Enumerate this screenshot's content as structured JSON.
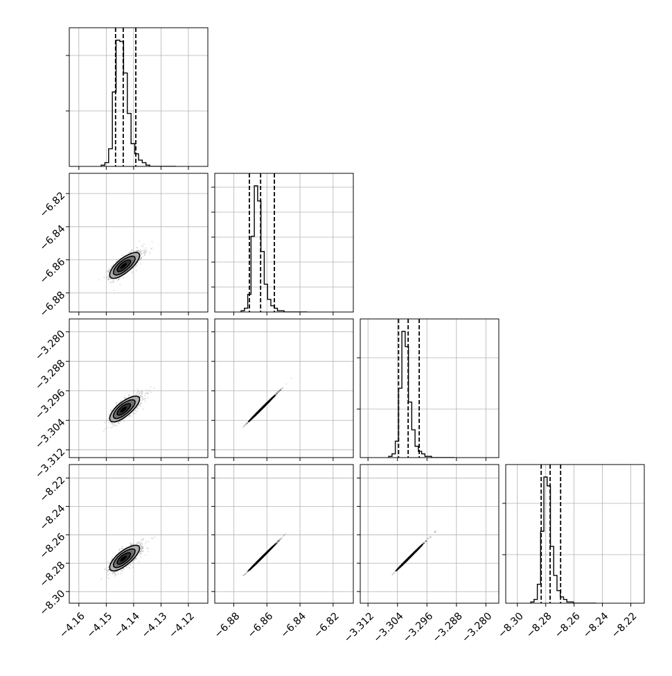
{
  "chart_data": {
    "type": "corner",
    "n_params": 4,
    "grid": true,
    "colors": {
      "line": "#000000",
      "grid": "#b0b0b0",
      "points": "#000000",
      "fill_dark": "#000000",
      "fill_mid": "#606060",
      "fill_light": "#a8a8a8"
    },
    "params": [
      {
        "lim": [
          -4.1635,
          -4.1129
        ],
        "ticks": [
          -4.16,
          -4.15,
          -4.14,
          -4.13,
          -4.12
        ],
        "tick_labels": [
          "−4.16",
          "−4.15",
          "−4.14",
          "−4.13",
          "−4.12"
        ],
        "mean": -4.1438,
        "sd": 0.0026,
        "quantiles": [
          -4.1466,
          -4.1438,
          -4.1392
        ]
      },
      {
        "lim": [
          -6.8915,
          -6.8078
        ],
        "ticks": [
          -6.88,
          -6.86,
          -6.84,
          -6.82
        ],
        "tick_labels": [
          "−6.88",
          "−6.86",
          "−6.84",
          "−6.82"
        ],
        "mean": -6.8638,
        "sd": 0.0038,
        "quantiles": [
          -6.8706,
          -6.8638,
          -6.8555
        ]
      },
      {
        "lim": [
          -3.3141,
          -3.2765
        ],
        "ticks": [
          -3.312,
          -3.304,
          -3.296,
          -3.288,
          -3.28
        ],
        "tick_labels": [
          "−3.312",
          "−3.304",
          "−3.296",
          "−3.288",
          "−3.280"
        ],
        "mean": -3.3011,
        "sd": 0.0017,
        "quantiles": [
          -3.3037,
          -3.3011,
          -3.2981
        ]
      },
      {
        "lim": [
          -8.3082,
          -8.2105
        ],
        "ticks": [
          -8.3,
          -8.28,
          -8.26,
          -8.24,
          -8.22
        ],
        "tick_labels": [
          "−8.30",
          "−8.28",
          "−8.26",
          "−8.24",
          "−8.22"
        ],
        "mean": -8.2769,
        "sd": 0.0044,
        "quantiles": [
          -8.2832,
          -8.2769,
          -8.2695
        ]
      }
    ],
    "correlations": [
      [
        1.0,
        0.73,
        0.73,
        0.73
      ],
      [
        0.73,
        1.0,
        0.998,
        0.998
      ],
      [
        0.73,
        0.998,
        1.0,
        0.998
      ],
      [
        0.73,
        0.998,
        0.998,
        1.0
      ]
    ],
    "histograms": [
      {
        "bins": 20,
        "counts": [
          1,
          3,
          14,
          59,
          100,
          99,
          74,
          42,
          18,
          10,
          5,
          3,
          1,
          0,
          0,
          0,
          0,
          0,
          0,
          0
        ]
      },
      {
        "bins": 20,
        "counts": [
          1,
          3,
          14,
          60,
          100,
          88,
          48,
          22,
          10,
          5,
          3,
          1,
          1,
          0,
          0,
          0,
          0,
          0,
          0,
          0
        ]
      },
      {
        "bins": 20,
        "counts": [
          1,
          3,
          13,
          55,
          100,
          88,
          44,
          22,
          9,
          5,
          3,
          1,
          1,
          0,
          0,
          0,
          0,
          0,
          0,
          0
        ]
      },
      {
        "bins": 20,
        "counts": [
          1,
          3,
          15,
          57,
          100,
          93,
          45,
          22,
          10,
          5,
          3,
          1,
          1,
          0,
          0,
          0,
          0,
          0,
          0,
          0
        ]
      }
    ],
    "diag_yticks": [
      [
        0.8,
        0.4
      ],
      [
        0.18,
        0.36,
        0.54,
        0.72,
        0.9
      ],
      [
        0.35,
        0.72
      ],
      [
        0.35,
        0.72
      ]
    ]
  }
}
